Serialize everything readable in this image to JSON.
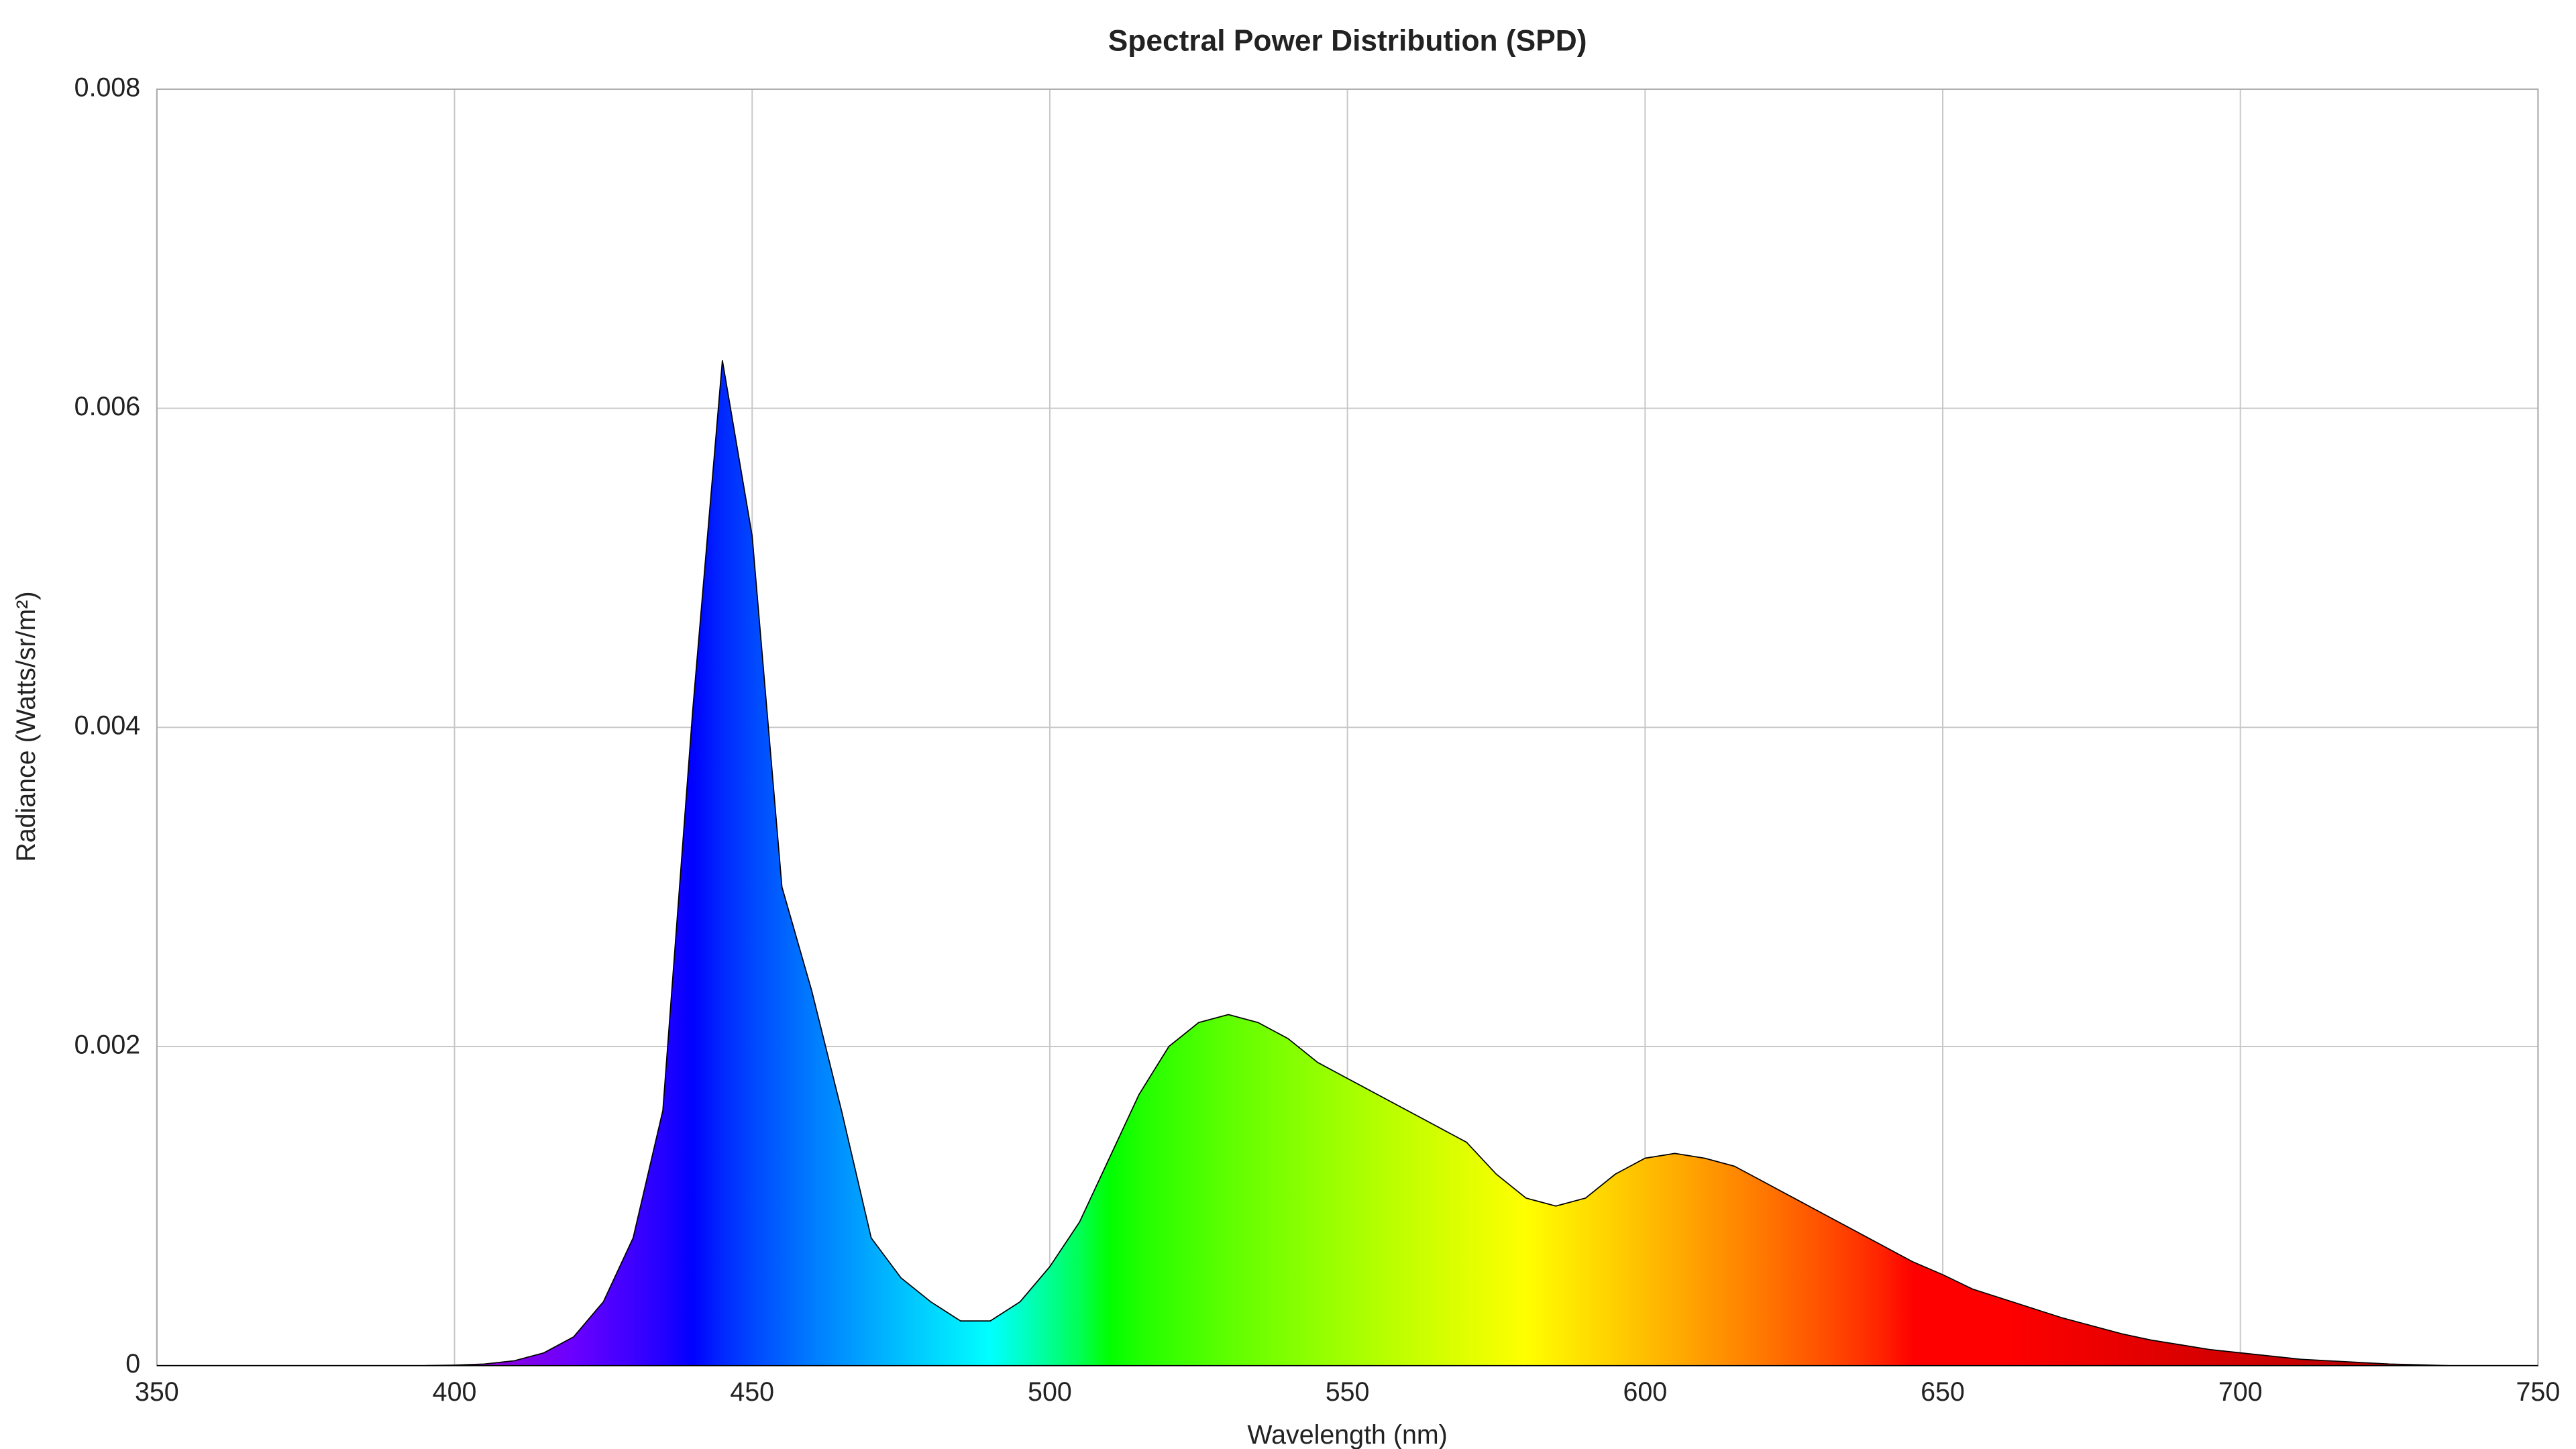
{
  "chart_data": {
    "type": "area",
    "title": "Spectral Power Distribution (SPD)",
    "x_label": "Wavelength (nm)",
    "y_label": "Radiance (Watts/sr/m²)",
    "x": [
      350,
      355,
      360,
      365,
      370,
      375,
      380,
      385,
      390,
      395,
      400,
      405,
      410,
      415,
      420,
      425,
      430,
      435,
      440,
      445,
      450,
      455,
      460,
      465,
      470,
      475,
      480,
      485,
      490,
      495,
      500,
      505,
      510,
      515,
      520,
      525,
      530,
      535,
      540,
      545,
      550,
      555,
      560,
      565,
      570,
      575,
      580,
      585,
      590,
      595,
      600,
      605,
      610,
      615,
      620,
      625,
      630,
      635,
      640,
      645,
      650,
      655,
      660,
      665,
      670,
      675,
      680,
      685,
      690,
      695,
      700,
      705,
      710,
      715,
      720,
      725,
      730,
      735,
      740,
      745,
      750
    ],
    "values": [
      0,
      0,
      0,
      0,
      0,
      0,
      0,
      0,
      0,
      0,
      3e-06,
      1e-05,
      3e-05,
      8e-05,
      0.00018,
      0.0004,
      0.0008,
      0.0016,
      0.0041,
      0.0063,
      0.0052,
      0.003,
      0.00235,
      0.0016,
      0.0008,
      0.00055,
      0.0004,
      0.00028,
      0.00028,
      0.0004,
      0.00062,
      0.0009,
      0.0013,
      0.0017,
      0.002,
      0.00215,
      0.0022,
      0.00215,
      0.00205,
      0.0019,
      0.0018,
      0.0017,
      0.0016,
      0.0015,
      0.0014,
      0.0012,
      0.00105,
      0.001,
      0.00105,
      0.0012,
      0.0013,
      0.00133,
      0.0013,
      0.00125,
      0.00115,
      0.00105,
      0.00095,
      0.00085,
      0.00075,
      0.00065,
      0.00057,
      0.00048,
      0.00042,
      0.00036,
      0.0003,
      0.00025,
      0.0002,
      0.00016,
      0.00013,
      0.0001,
      8e-05,
      6e-05,
      4e-05,
      3e-05,
      2e-05,
      1e-05,
      5e-06,
      0,
      0,
      0,
      0
    ],
    "xlim": [
      350,
      750
    ],
    "ylim": [
      0,
      0.008
    ],
    "xticks": [
      350,
      400,
      450,
      500,
      550,
      600,
      650,
      700,
      750
    ],
    "yticks": [
      0,
      0.002,
      0.004,
      0.006,
      0.008
    ],
    "grid": true,
    "line_color": "#000000"
  }
}
